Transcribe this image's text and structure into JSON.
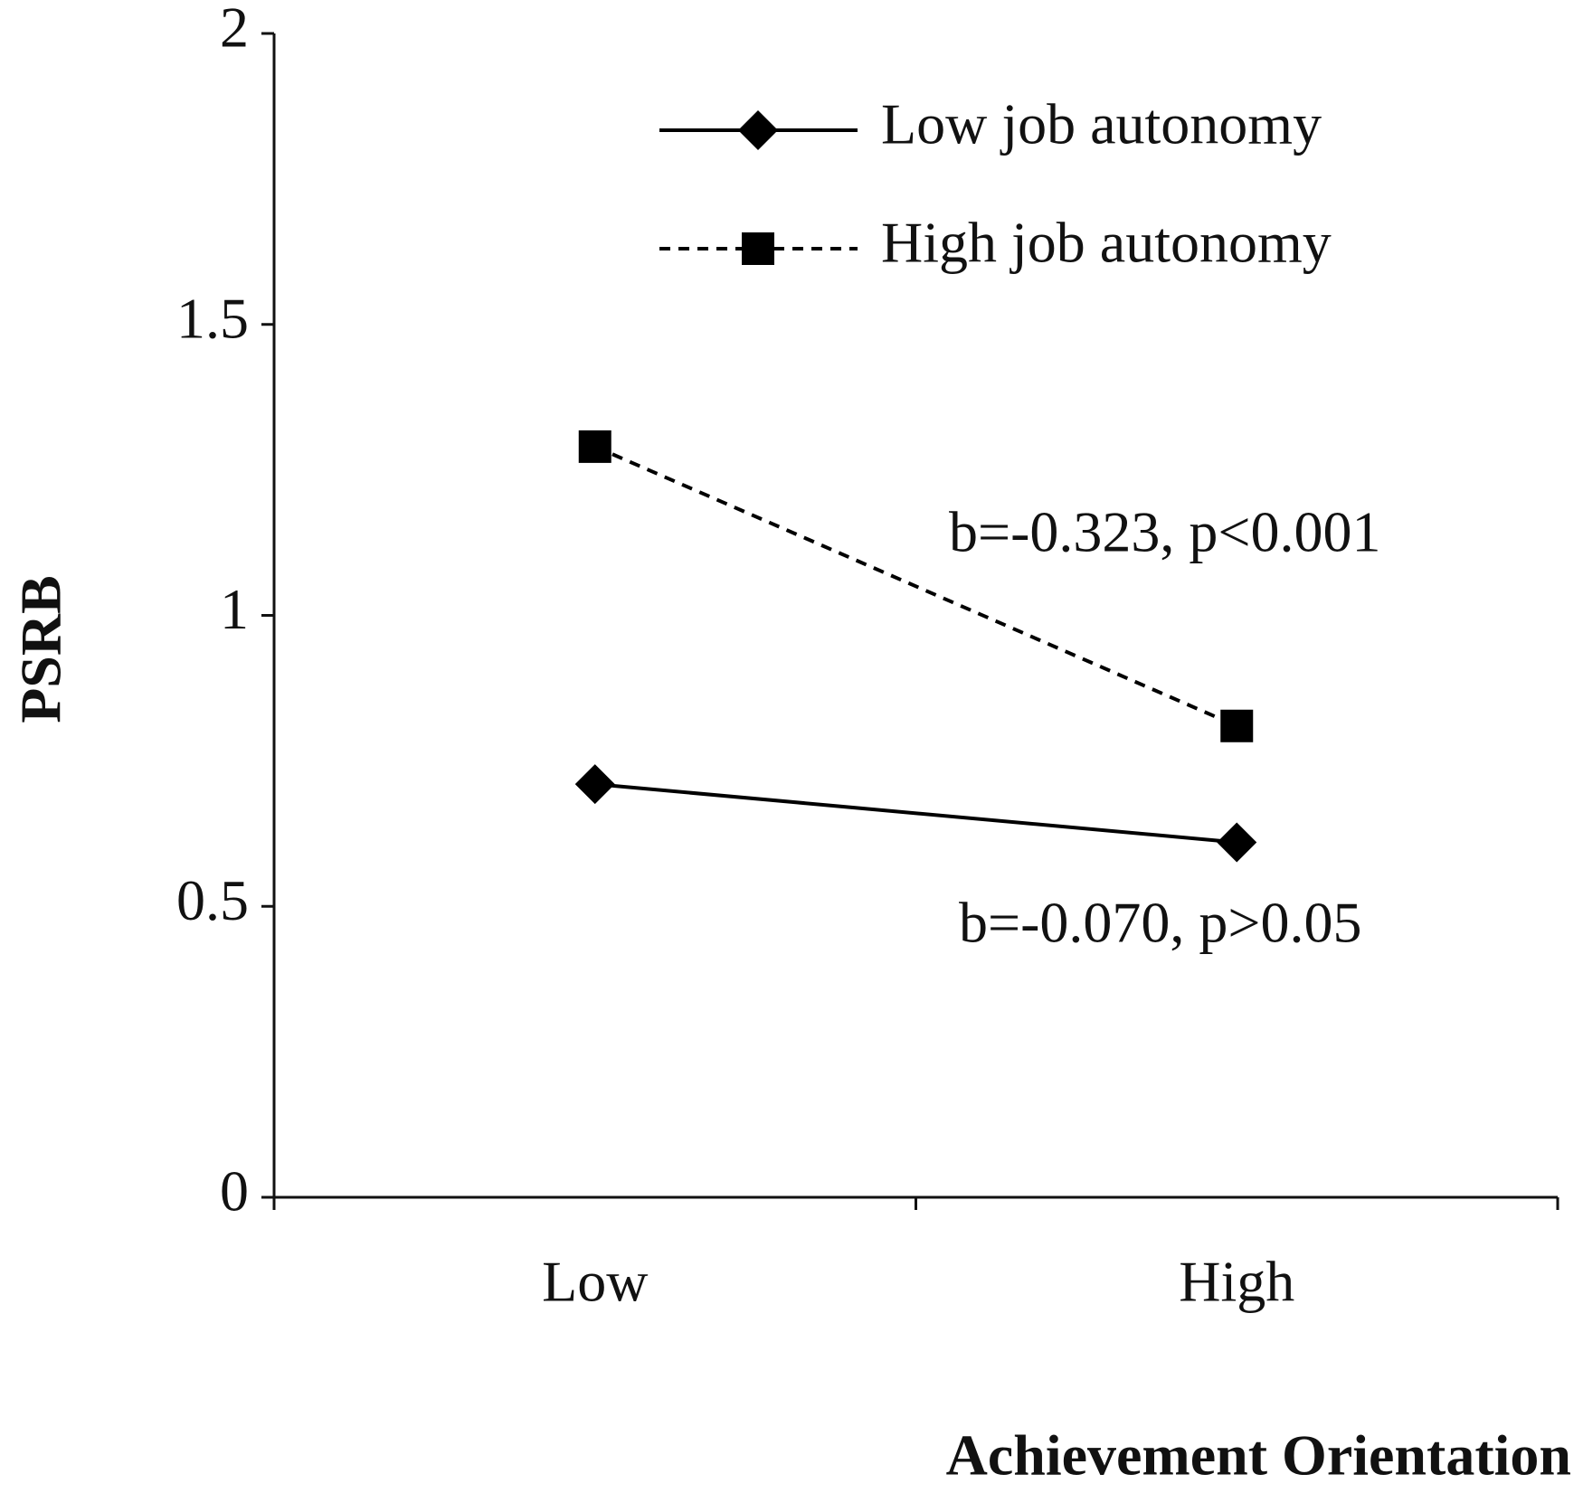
{
  "chart_data": {
    "type": "line",
    "x_label": "Achievement Orientation",
    "y_label": "PSRB",
    "categories": [
      "Low",
      "High"
    ],
    "series": [
      {
        "name": "Low job autonomy",
        "color": "#000000",
        "line_style": "solid",
        "marker": "diamond",
        "values": [
          0.71,
          0.61
        ]
      },
      {
        "name": "High job autonomy",
        "color": "#000000",
        "line_style": "dashed",
        "marker": "square",
        "values": [
          1.29,
          0.81
        ]
      }
    ],
    "ylim": [
      0,
      2
    ],
    "yticks": [
      0,
      0.5,
      1,
      1.5,
      2
    ],
    "grid": false,
    "legend": "top-right",
    "annotations": [
      "b=-0.323, p<0.001",
      "b=-0.070, p>0.05"
    ]
  }
}
